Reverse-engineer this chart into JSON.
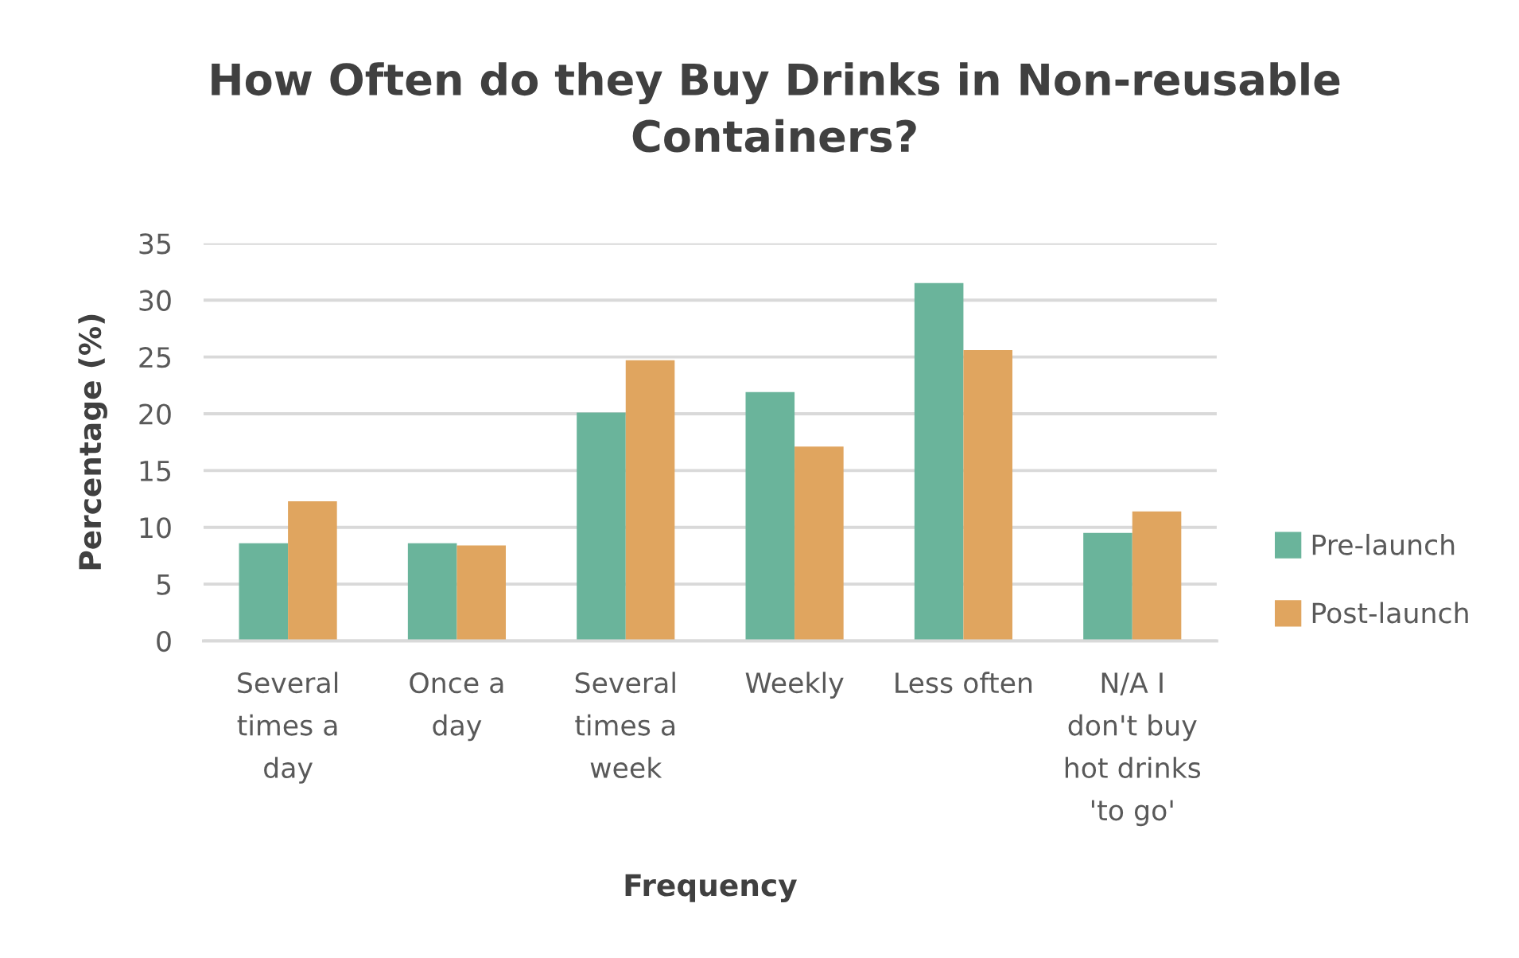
{
  "chart_data": {
    "type": "bar",
    "title": "How Often do they Buy Drinks in Non-reusable Containers?",
    "xlabel": "Frequency",
    "ylabel": "Percentage (%)",
    "categories": [
      "Several times a day",
      "Once a day",
      "Several times a week",
      "Weekly",
      "Less often",
      "N/A I don't buy hot drinks 'to go'"
    ],
    "series": [
      {
        "name": "Pre-launch",
        "color": "#6ab49b",
        "values": [
          8.6,
          8.6,
          20.1,
          21.9,
          31.5,
          9.5
        ]
      },
      {
        "name": "Post-launch",
        "color": "#e0a55f",
        "values": [
          12.3,
          8.4,
          24.7,
          17.1,
          25.6,
          11.4
        ]
      }
    ],
    "ylim": [
      0,
      35
    ],
    "yticks": [
      0,
      5,
      10,
      15,
      20,
      25,
      30,
      35
    ],
    "grid": "y",
    "legend": "right"
  }
}
